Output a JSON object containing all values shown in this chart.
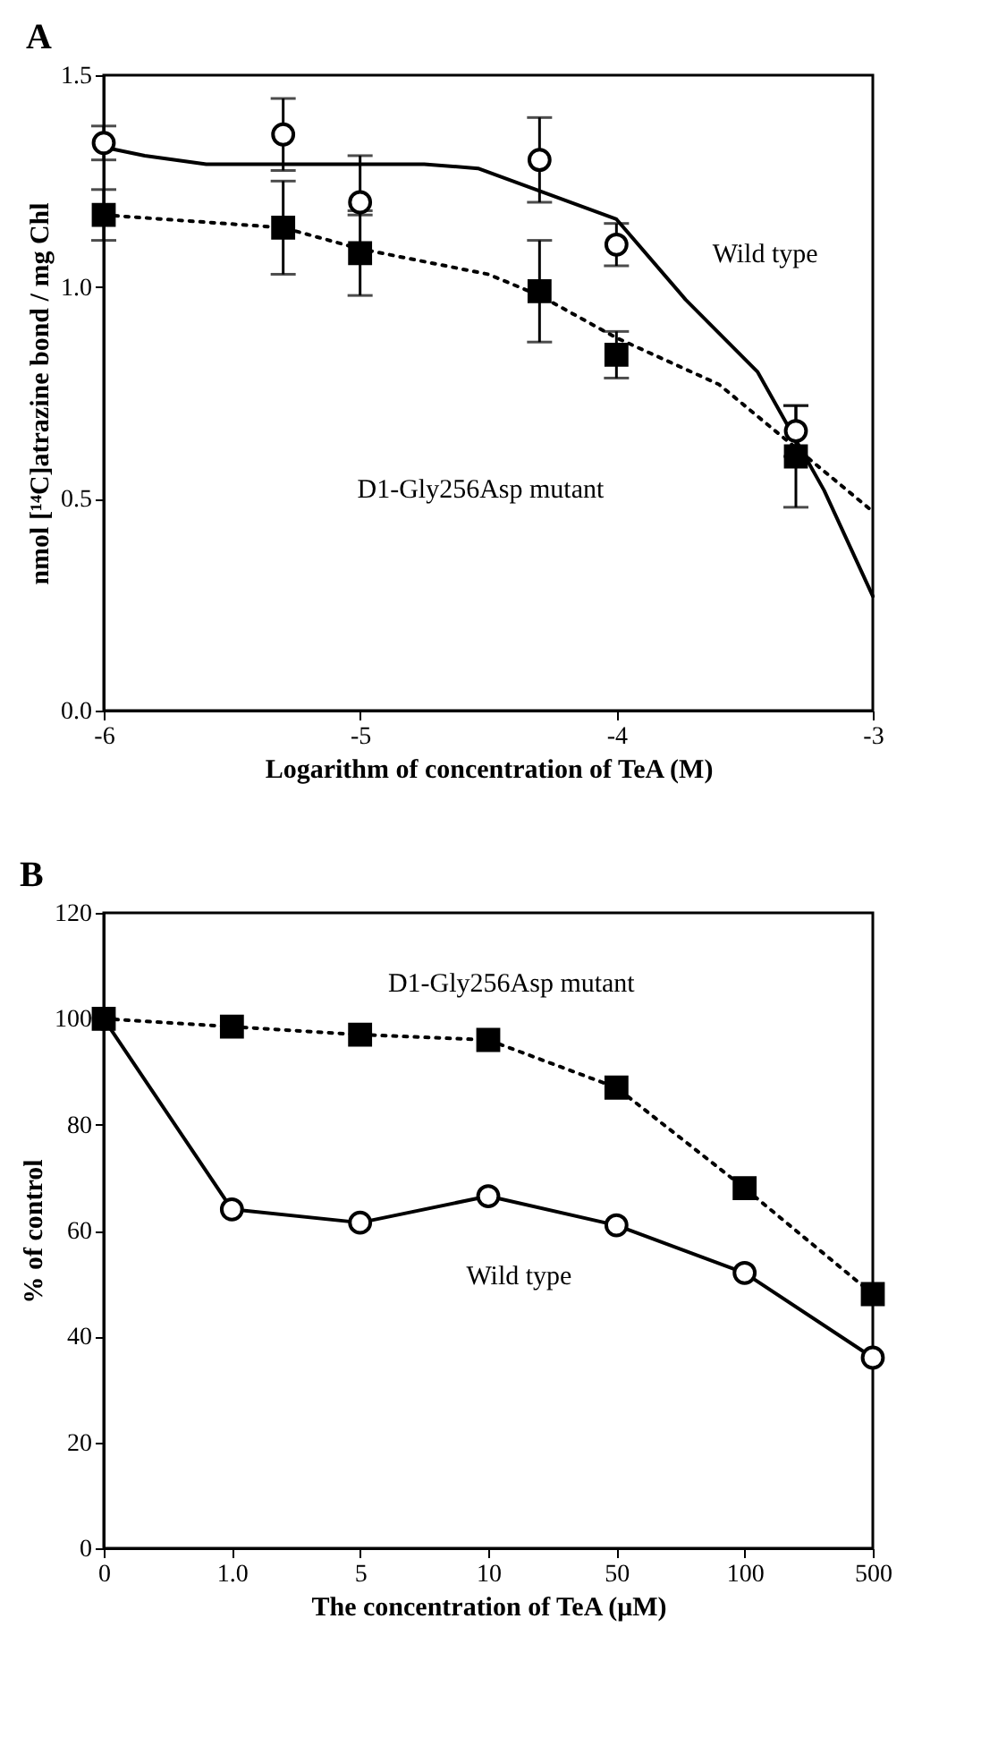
{
  "chart_data": [
    {
      "type": "scatter",
      "title": "A",
      "xlabel": "Logarithm of concentration of TeA (M)",
      "ylabel": "nmol [¹⁴C]atrazine bond / mg Chl",
      "xlim": [
        -6,
        -3
      ],
      "xticks": [
        -6,
        -5,
        -4,
        -3
      ],
      "ylim": [
        0,
        1.5
      ],
      "yticks": [
        {
          "value": 0,
          "label": "0.0"
        },
        0.5,
        {
          "value": 1,
          "label": "1.0"
        },
        1.5
      ],
      "grid": false,
      "series": [
        {
          "type": "line",
          "color": "#000000",
          "line_style": "solid",
          "marker": "none",
          "x": [
            -6,
            -5.84,
            -5.6,
            -4.75,
            -4.54,
            -4,
            -3.73,
            -3.45,
            -3.19,
            -3
          ],
          "values": [
            1.33,
            1.31,
            1.29,
            1.29,
            1.28,
            1.16,
            0.97,
            0.8,
            0.52,
            0.27
          ]
        },
        {
          "type": "line",
          "color": "#000000",
          "line_style": "dotted",
          "marker": "none",
          "x": [
            -6,
            -5.3,
            -5,
            -4.5,
            -4.3,
            -4,
            -3.6,
            -3.3,
            -3
          ],
          "values": [
            1.17,
            1.14,
            1.09,
            1.03,
            0.98,
            0.88,
            0.77,
            0.62,
            0.47
          ]
        },
        {
          "type": "scatter",
          "color": "#000000",
          "marker": "circle",
          "x": [
            -6,
            -5.3,
            -5,
            -4.3,
            -4,
            -3.3
          ],
          "values": [
            1.34,
            1.36,
            1.2,
            1.3,
            1.1,
            0.66
          ],
          "errors": [
            0.04,
            0.085,
            [
              1.17,
              1.31
            ],
            0.1,
            0.05,
            0.06
          ]
        },
        {
          "type": "scatter",
          "color": "#000000",
          "marker": "square",
          "x": [
            -6,
            -5.3,
            -5,
            -4.3,
            -4,
            -3.3
          ],
          "values": [
            1.17,
            1.14,
            1.08,
            0.99,
            0.84,
            0.6
          ],
          "errors": [
            0.06,
            0.11,
            0.1,
            0.12,
            0.055,
            0.12
          ]
        }
      ],
      "annotations": [
        "Wild type",
        "D1-Gly256Asp mutant"
      ]
    },
    {
      "type": "line",
      "title": "B",
      "xlabel": "The concentration of TeA (μM)",
      "ylabel": "% of control",
      "categories": [
        "0",
        "1.0",
        "5",
        "10",
        "50",
        "100",
        "500"
      ],
      "ylim": [
        0,
        120
      ],
      "yticks": [
        0,
        20,
        40,
        60,
        80,
        100,
        120
      ],
      "grid": false,
      "series": [
        {
          "color": "#000000",
          "marker": "square",
          "line_style": "dotted",
          "values": [
            100,
            98.5,
            97,
            96,
            87,
            68,
            48
          ]
        },
        {
          "color": "#000000",
          "marker": "circle",
          "line_style": "solid",
          "values": [
            100,
            64,
            61.5,
            66.5,
            61,
            52,
            36
          ]
        }
      ],
      "annotations": [
        "D1-Gly256Asp mutant",
        "Wild type"
      ]
    }
  ]
}
